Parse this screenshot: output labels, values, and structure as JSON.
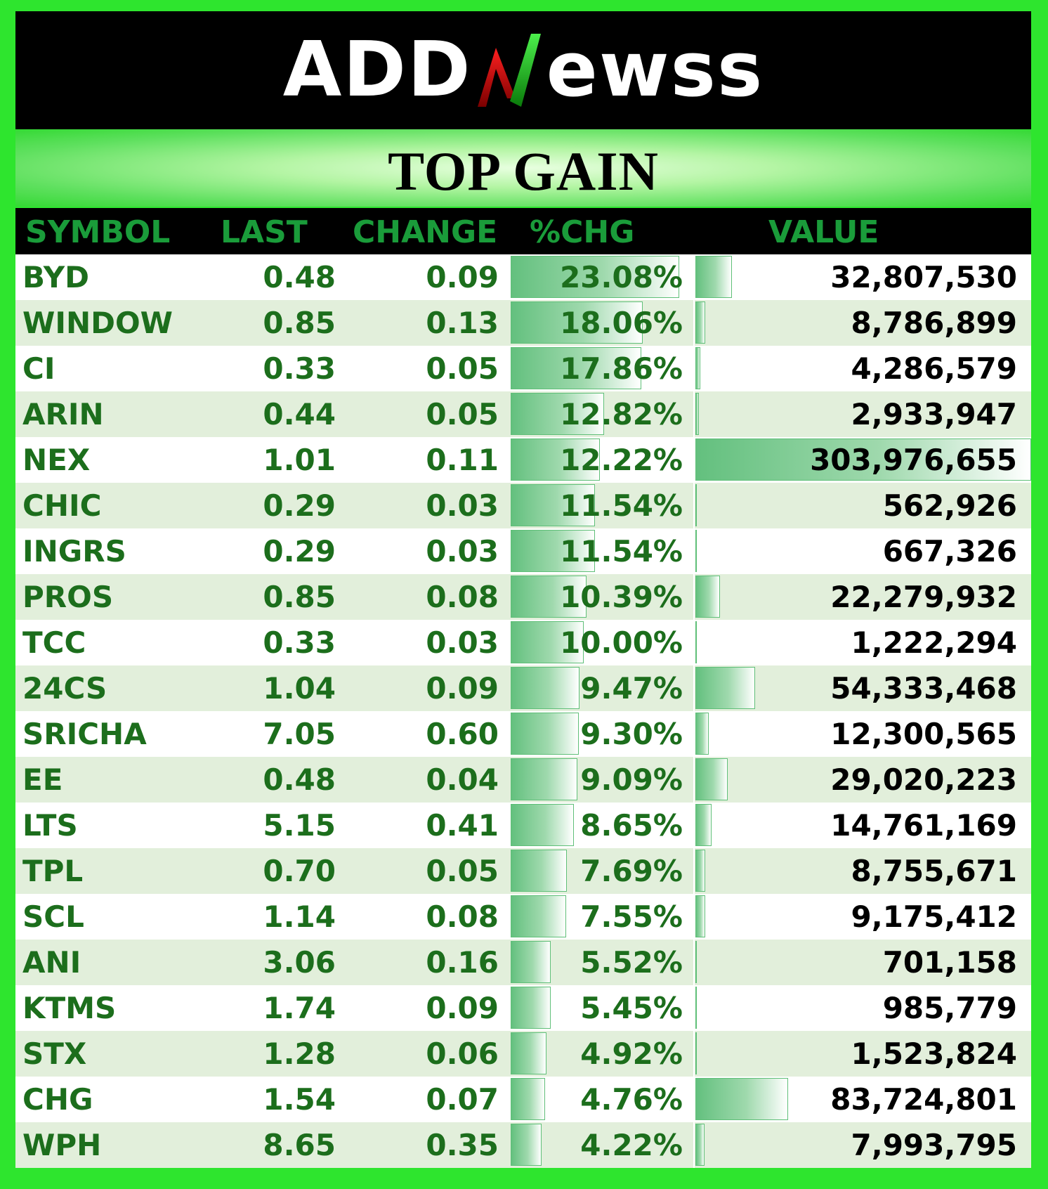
{
  "logo": {
    "left_text": "ADD",
    "right_text": "ewss"
  },
  "title": "TOP GAIN",
  "columns": {
    "symbol": "SYMBOL",
    "last": "LAST",
    "change": "CHANGE",
    "pct": "%CHG",
    "value": "VALUE"
  },
  "colors": {
    "background": "#2ee52e",
    "header_text": "#1a9c3a",
    "row_text": "#1c6e1c",
    "alt_row": "#e2efdb",
    "bar": "#63c07e"
  },
  "rows": [
    {
      "symbol": "BYD",
      "last": "0.48",
      "change": "0.09",
      "pct": "23.08%",
      "value": "32,807,530"
    },
    {
      "symbol": "WINDOW",
      "last": "0.85",
      "change": "0.13",
      "pct": "18.06%",
      "value": "8,786,899"
    },
    {
      "symbol": "CI",
      "last": "0.33",
      "change": "0.05",
      "pct": "17.86%",
      "value": "4,286,579"
    },
    {
      "symbol": "ARIN",
      "last": "0.44",
      "change": "0.05",
      "pct": "12.82%",
      "value": "2,933,947"
    },
    {
      "symbol": "NEX",
      "last": "1.01",
      "change": "0.11",
      "pct": "12.22%",
      "value": "303,976,655"
    },
    {
      "symbol": "CHIC",
      "last": "0.29",
      "change": "0.03",
      "pct": "11.54%",
      "value": "562,926"
    },
    {
      "symbol": "INGRS",
      "last": "0.29",
      "change": "0.03",
      "pct": "11.54%",
      "value": "667,326"
    },
    {
      "symbol": "PROS",
      "last": "0.85",
      "change": "0.08",
      "pct": "10.39%",
      "value": "22,279,932"
    },
    {
      "symbol": "TCC",
      "last": "0.33",
      "change": "0.03",
      "pct": "10.00%",
      "value": "1,222,294"
    },
    {
      "symbol": "24CS",
      "last": "1.04",
      "change": "0.09",
      "pct": "9.47%",
      "value": "54,333,468"
    },
    {
      "symbol": "SRICHA",
      "last": "7.05",
      "change": "0.60",
      "pct": "9.30%",
      "value": "12,300,565"
    },
    {
      "symbol": "EE",
      "last": "0.48",
      "change": "0.04",
      "pct": "9.09%",
      "value": "29,020,223"
    },
    {
      "symbol": "LTS",
      "last": "5.15",
      "change": "0.41",
      "pct": "8.65%",
      "value": "14,761,169"
    },
    {
      "symbol": "TPL",
      "last": "0.70",
      "change": "0.05",
      "pct": "7.69%",
      "value": "8,755,671"
    },
    {
      "symbol": "SCL",
      "last": "1.14",
      "change": "0.08",
      "pct": "7.55%",
      "value": "9,175,412"
    },
    {
      "symbol": "ANI",
      "last": "3.06",
      "change": "0.16",
      "pct": "5.52%",
      "value": "701,158"
    },
    {
      "symbol": "KTMS",
      "last": "1.74",
      "change": "0.09",
      "pct": "5.45%",
      "value": "985,779"
    },
    {
      "symbol": "STX",
      "last": "1.28",
      "change": "0.06",
      "pct": "4.92%",
      "value": "1,523,824"
    },
    {
      "symbol": "CHG",
      "last": "1.54",
      "change": "0.07",
      "pct": "4.76%",
      "value": "83,724,801"
    },
    {
      "symbol": "WPH",
      "last": "8.65",
      "change": "0.35",
      "pct": "4.22%",
      "value": "7,993,795"
    }
  ]
}
